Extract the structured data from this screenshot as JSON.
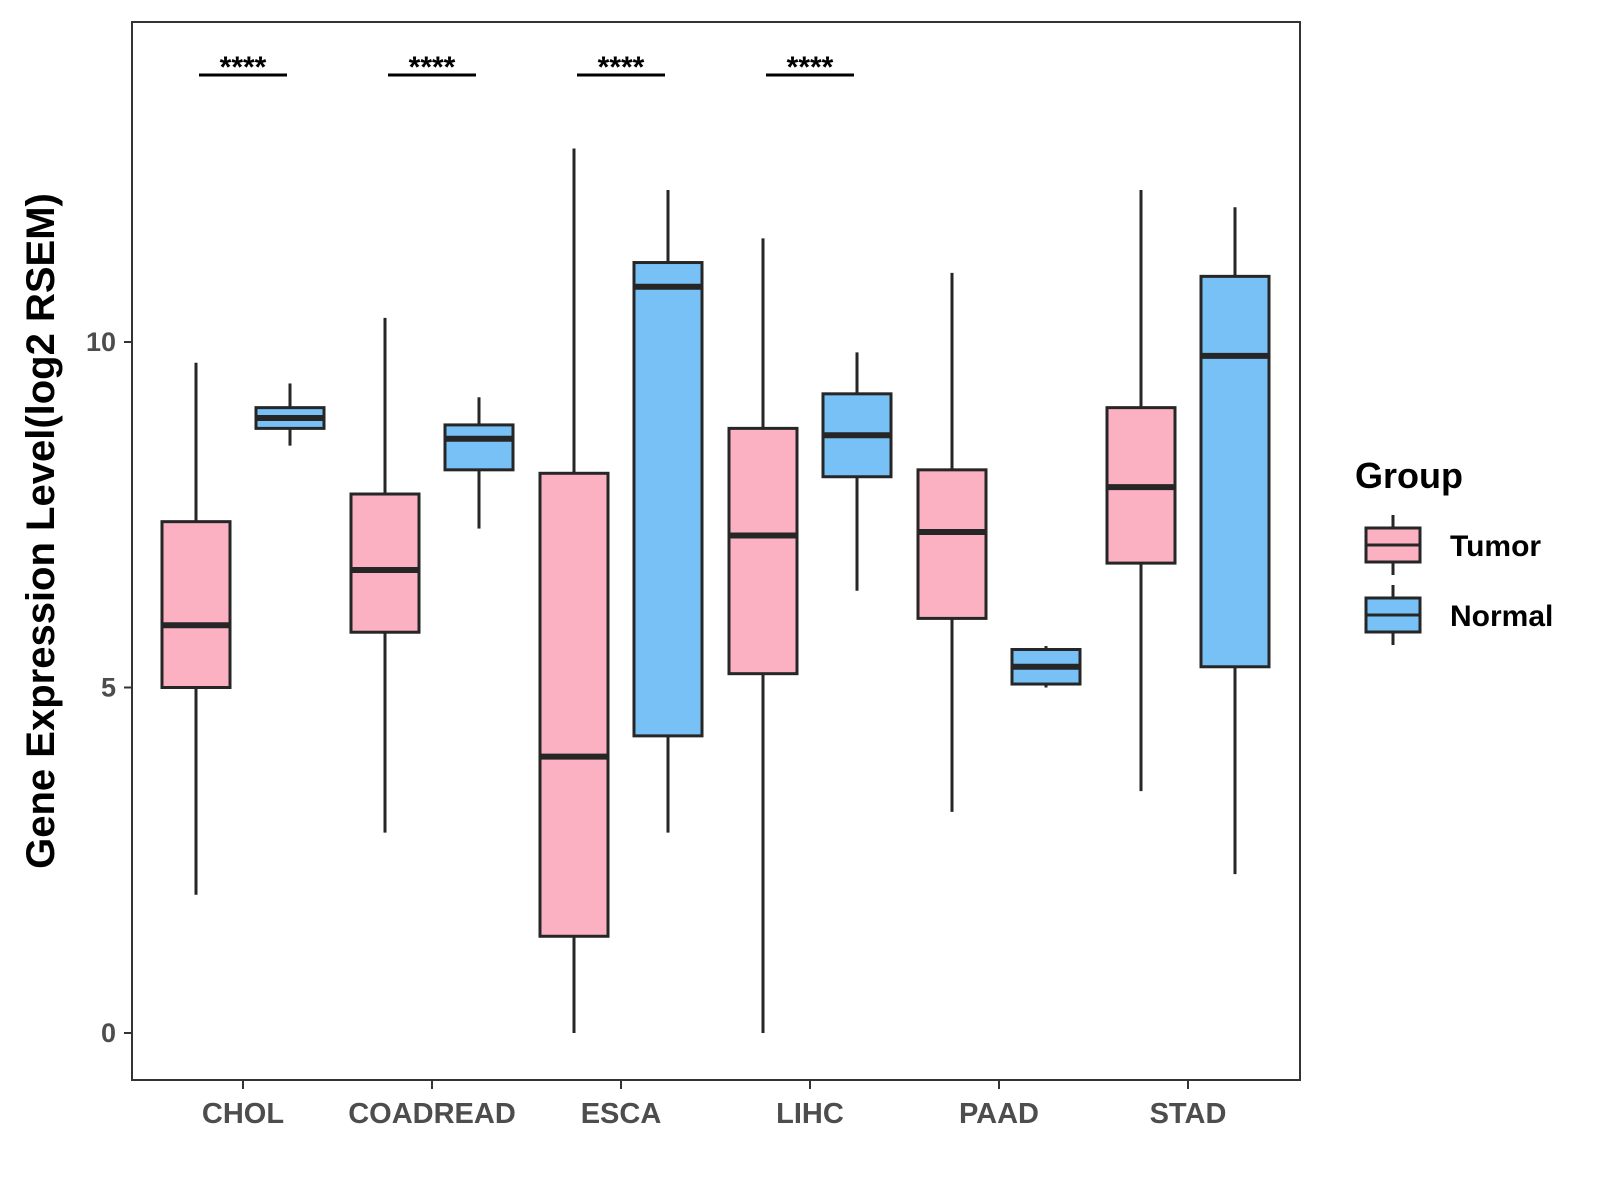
{
  "chart_data": {
    "type": "boxplot",
    "ylabel": "Gene Expression Level(log2 RSEM)",
    "xlabel": "",
    "ylim": [
      -0.7,
      14.6
    ],
    "yticks": [
      0,
      5,
      10
    ],
    "categories": [
      "CHOL",
      "COADREAD",
      "ESCA",
      "LIHC",
      "PAAD",
      "STAD"
    ],
    "series": [
      {
        "name": "Tumor",
        "color": "#FBB1C2",
        "boxes": [
          {
            "min": 2.0,
            "q1": 5.0,
            "median": 5.9,
            "q3": 7.4,
            "max": 9.7
          },
          {
            "min": 2.9,
            "q1": 5.8,
            "median": 6.7,
            "q3": 7.8,
            "max": 10.35
          },
          {
            "min": 0.0,
            "q1": 1.4,
            "median": 4.0,
            "q3": 8.1,
            "max": 12.8
          },
          {
            "min": 0.0,
            "q1": 5.2,
            "median": 7.2,
            "q3": 8.75,
            "max": 11.5
          },
          {
            "min": 3.2,
            "q1": 6.0,
            "median": 7.25,
            "q3": 8.15,
            "max": 11.0
          },
          {
            "min": 3.5,
            "q1": 6.8,
            "median": 7.9,
            "q3": 9.05,
            "max": 12.2
          }
        ]
      },
      {
        "name": "Normal",
        "color": "#77C1F7",
        "boxes": [
          {
            "min": 8.5,
            "q1": 8.75,
            "median": 8.9,
            "q3": 9.05,
            "max": 9.4
          },
          {
            "min": 7.3,
            "q1": 8.15,
            "median": 8.6,
            "q3": 8.8,
            "max": 9.2
          },
          {
            "min": 2.9,
            "q1": 4.3,
            "median": 10.8,
            "q3": 11.15,
            "max": 12.2
          },
          {
            "min": 6.4,
            "q1": 8.05,
            "median": 8.65,
            "q3": 9.25,
            "max": 9.85
          },
          {
            "min": 5.0,
            "q1": 5.05,
            "median": 5.3,
            "q3": 5.55,
            "max": 5.6
          },
          {
            "min": 2.3,
            "q1": 5.3,
            "median": 9.8,
            "q3": 10.95,
            "max": 11.95
          }
        ]
      }
    ],
    "significance": [
      {
        "category": "CHOL",
        "label": "****"
      },
      {
        "category": "COADREAD",
        "label": "****"
      },
      {
        "category": "ESCA",
        "label": "****"
      },
      {
        "category": "LIHC",
        "label": "****"
      }
    ],
    "legend": {
      "title": "Group",
      "position": "right",
      "items": [
        "Tumor",
        "Normal"
      ]
    }
  },
  "colors": {
    "tumor": "#FBB1C2",
    "normal": "#77C1F7",
    "outline": "#262626",
    "axis": "#333333"
  }
}
